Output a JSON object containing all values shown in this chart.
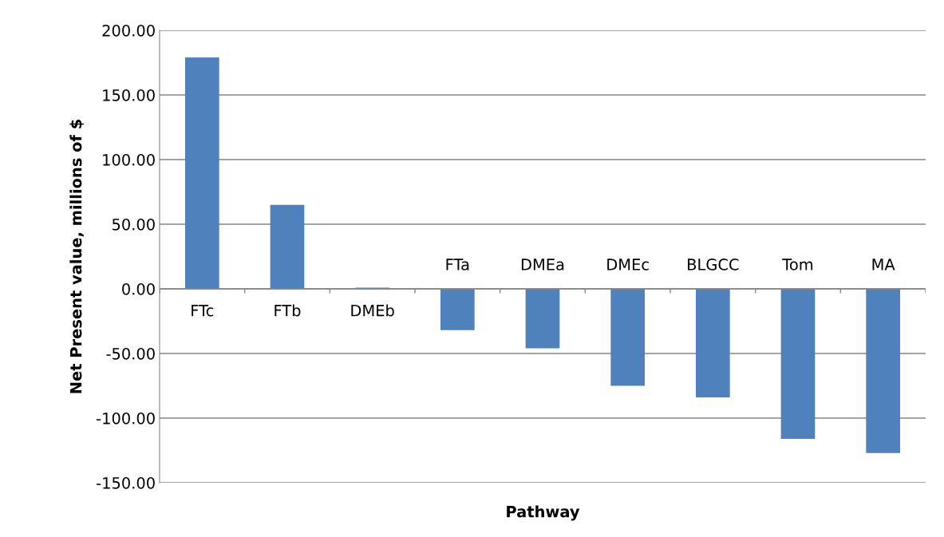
{
  "chart_data": {
    "type": "bar",
    "xlabel": "Pathway",
    "ylabel": "Net Present value, millions of $",
    "categories": [
      "FTc",
      "FTb",
      "DMEb",
      "FTa",
      "DMEa",
      "DMEc",
      "BLGCC",
      "Tom",
      "MA"
    ],
    "values": [
      179,
      65,
      1,
      -32,
      -46,
      -75,
      -84,
      -116,
      -127
    ],
    "color": "#4f81bd",
    "ylim": [
      -150,
      200
    ],
    "yticks": [
      {
        "value": -150,
        "label": "-150.00"
      },
      {
        "value": -100,
        "label": "-100.00"
      },
      {
        "value": -50,
        "label": "-50.00"
      },
      {
        "value": 0,
        "label": "0.00"
      },
      {
        "value": 50,
        "label": "50.00"
      },
      {
        "value": 100,
        "label": "100.00"
      },
      {
        "value": 150,
        "label": "150.00"
      },
      {
        "value": 200,
        "label": "200.00"
      }
    ],
    "grid": "y"
  }
}
